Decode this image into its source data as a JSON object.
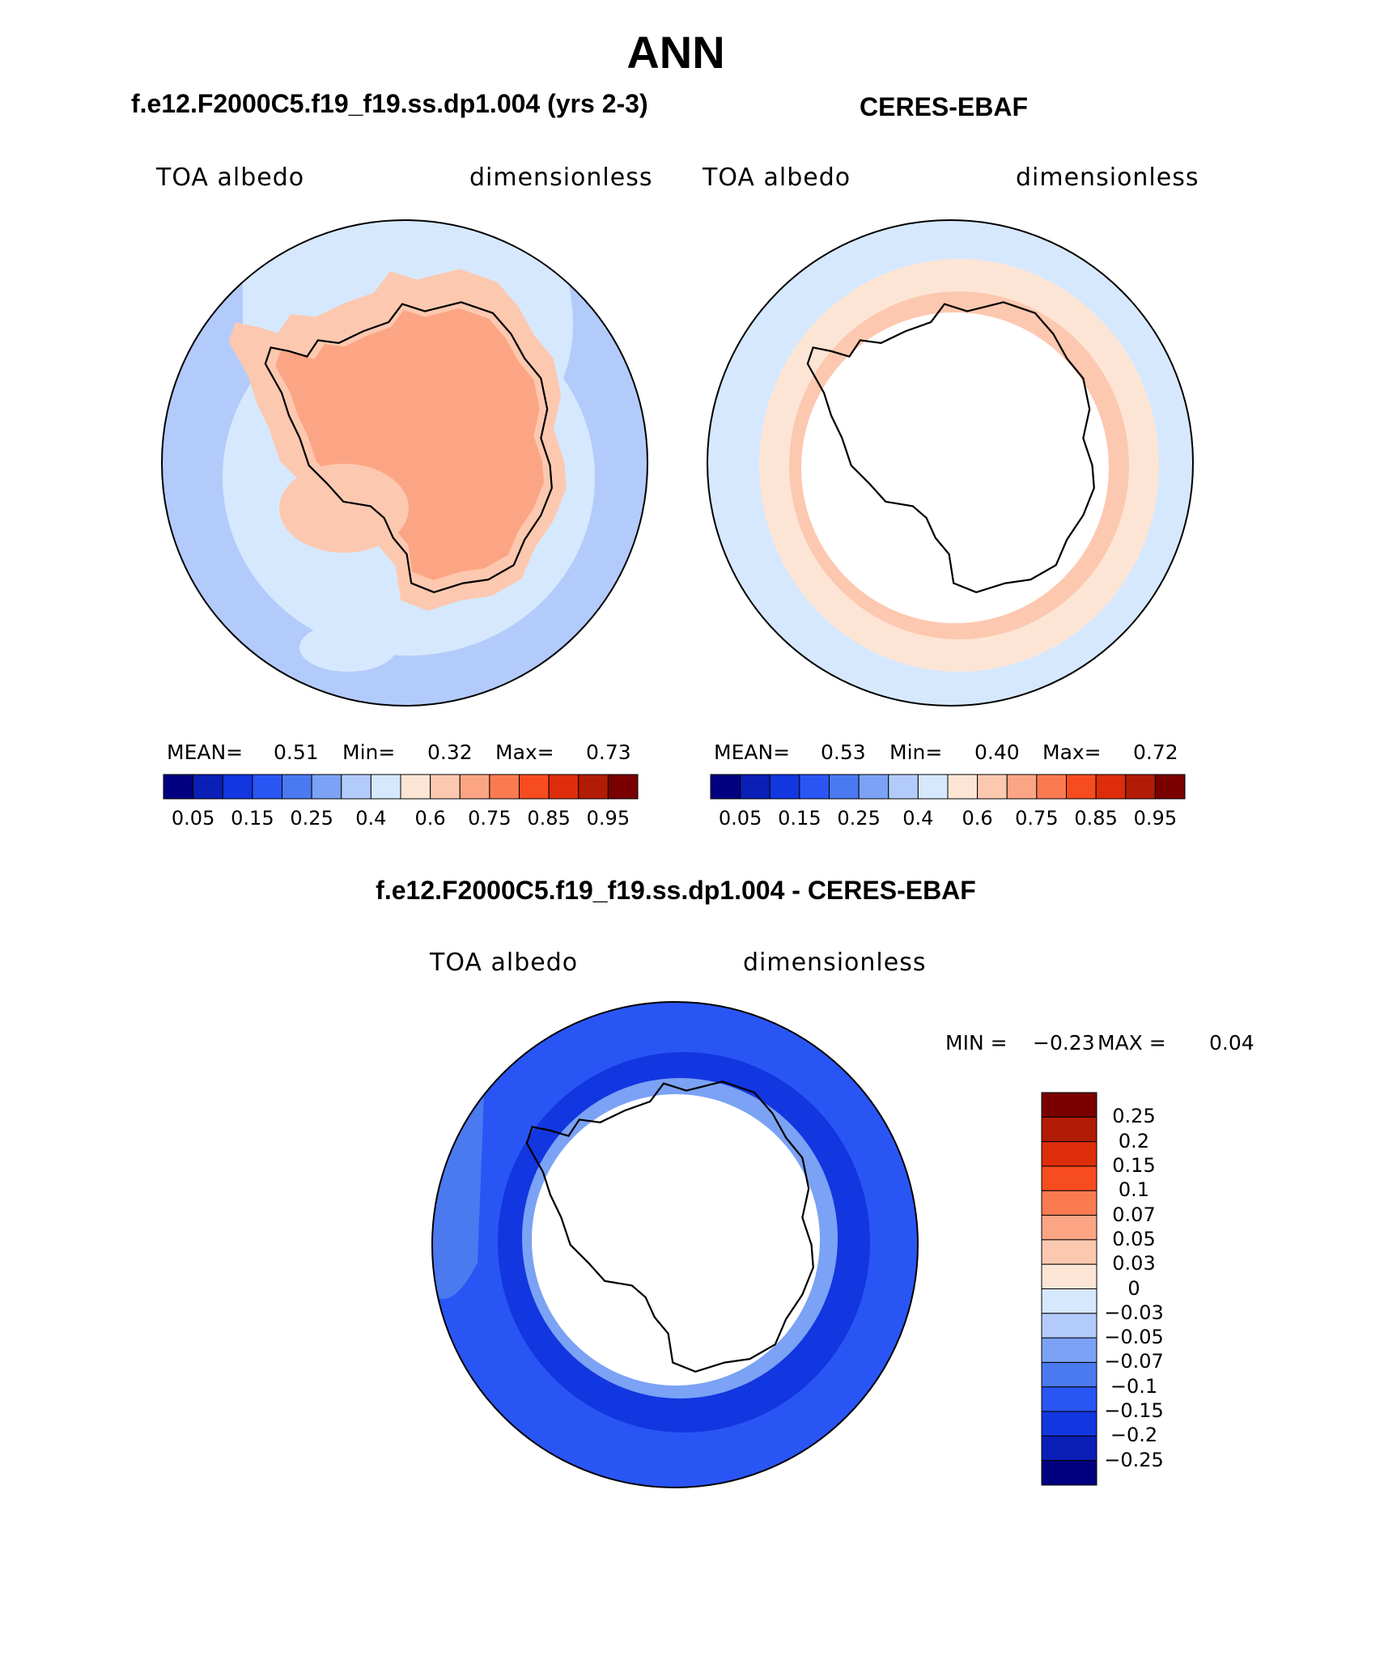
{
  "title": "ANN",
  "panels": [
    {
      "case": "f.e12.F2000C5.f19_f19.ss.dp1.004 (yrs 2-3)",
      "variable": "TOA albedo",
      "units": "dimensionless",
      "stats": {
        "mean_label": "MEAN=",
        "mean": "0.51",
        "min_label": "Min=",
        "min": "0.32",
        "max_label": "Max=",
        "max": "0.73"
      }
    },
    {
      "case": "CERES-EBAF",
      "variable": "TOA albedo",
      "units": "dimensionless",
      "stats": {
        "mean_label": "MEAN=",
        "mean": "0.53",
        "min_label": "Min=",
        "min": "0.40",
        "max_label": "Max=",
        "max": "0.72"
      }
    }
  ],
  "colorbar": {
    "colors": [
      "#000080",
      "#0a1fb5",
      "#1236e0",
      "#2a55f5",
      "#4b79f0",
      "#7ba2f4",
      "#b3cbfb",
      "#d6e8fd",
      "#fde5d6",
      "#fdc8b0",
      "#fca584",
      "#fb7b50",
      "#f74c1f",
      "#de2d0a",
      "#b21c06",
      "#7a0000"
    ],
    "tick_labels": [
      "0.05",
      "0.15",
      "0.25",
      "0.4",
      "0.6",
      "0.75",
      "0.85",
      "0.95"
    ]
  },
  "diff": {
    "title": "f.e12.F2000C5.f19_f19.ss.dp1.004 - CERES-EBAF",
    "variable": "TOA albedo",
    "units": "dimensionless",
    "min_label": "MIN =",
    "min": "−0.23",
    "max_label": "MAX =",
    "max": "0.04",
    "colorbar": {
      "colors": [
        "#7a0000",
        "#b21c06",
        "#de2d0a",
        "#f74c1f",
        "#fb7b50",
        "#fca584",
        "#fdc8b0",
        "#fde5d6",
        "#d6e8fd",
        "#b3cbfb",
        "#7ba2f4",
        "#4b79f0",
        "#2a55f5",
        "#1236e0",
        "#0a1fb5",
        "#000080"
      ],
      "tick_labels": [
        "0.25",
        "0.2",
        "0.15",
        "0.1",
        "0.07",
        "0.05",
        "0.03",
        "0",
        "−0.03",
        "−0.05",
        "−0.07",
        "−0.1",
        "−0.15",
        "−0.2",
        "−0.25"
      ]
    }
  },
  "colors": {
    "model_ocean_light": "#d6e8fd",
    "model_ocean": "#b3cbfb",
    "model_ice": "#fdc8b0",
    "model_land": "#fca584",
    "obs_ocean": "#d6e8fd",
    "obs_ring": "#fde5d6",
    "obs_ring_inner": "#fdc8b0",
    "diff_outer": "#2a55f5",
    "diff_mid": "#1236e0",
    "diff_edge": "#7ba2f4",
    "missing": "#ffffff",
    "coast": "#000000"
  }
}
